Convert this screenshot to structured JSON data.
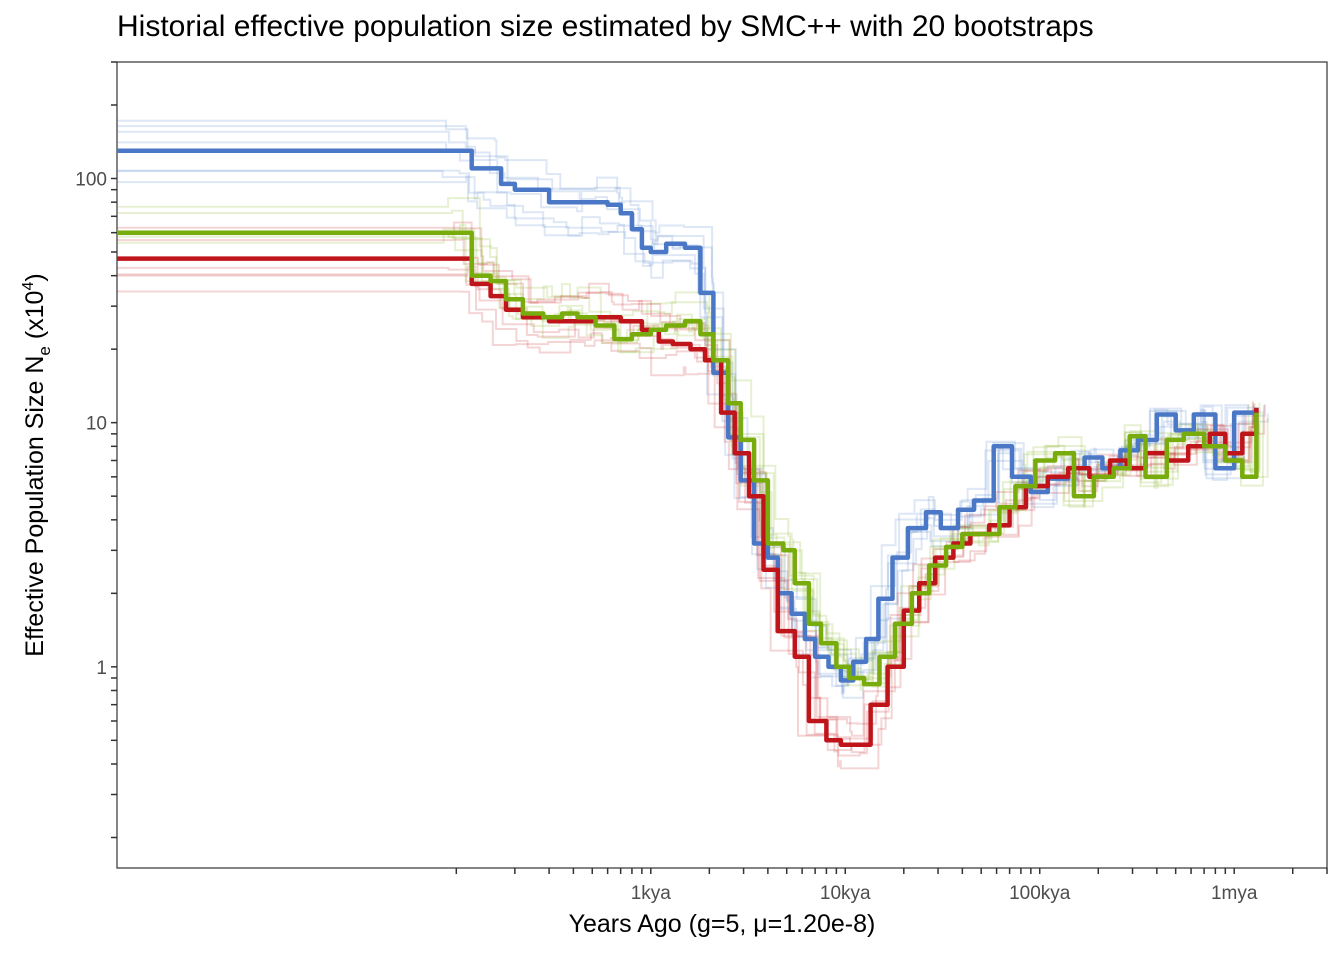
{
  "chart_data": {
    "type": "line",
    "title": "Historial effective population size estimated by SMC++ with 20 bootstraps",
    "xlabel": "Years Ago (g=5, μ=1.20e-8)",
    "ylabel_text": "Effective Population Size N",
    "ylabel_sub": "e",
    "ylabel_unit_prefix": " (x10",
    "ylabel_unit_exp": "4",
    "ylabel_unit_suffix": ")",
    "x_scale": "log10",
    "y_scale": "log10",
    "xlim": [
      1.8,
      3000000
    ],
    "ylim": [
      0.15,
      300
    ],
    "grid": false,
    "x_ticks": [
      {
        "value": 1000,
        "label": "1kya"
      },
      {
        "value": 10000,
        "label": "10kya"
      },
      {
        "value": 100000,
        "label": "100kya"
      },
      {
        "value": 1000000,
        "label": "1mya"
      }
    ],
    "y_ticks": [
      {
        "value": 1,
        "label": "1"
      },
      {
        "value": 10,
        "label": "10"
      },
      {
        "value": 100,
        "label": "100"
      }
    ],
    "series": [
      {
        "color": "#4a78c7",
        "x": [
          1.8,
          100,
          120,
          140,
          170,
          200,
          300,
          400,
          500,
          600,
          700,
          800,
          900,
          1000,
          1200,
          1500,
          1800,
          2100,
          2500,
          2900,
          3400,
          4000,
          4500,
          5300,
          6200,
          7000,
          8200,
          9500,
          11000,
          12800,
          14800,
          17500,
          21000,
          26000,
          31000,
          38000,
          46000,
          58000,
          72000,
          90000,
          110000,
          140000,
          170000,
          210000,
          260000,
          320000,
          400000,
          500000,
          620000,
          800000,
          1000000,
          1300000
        ],
        "y": [
          130,
          130,
          110,
          110,
          95,
          90,
          80,
          80,
          80,
          78,
          72,
          62,
          52,
          50,
          54,
          52,
          34,
          16,
          8.7,
          5.8,
          3.2,
          2.8,
          2.0,
          1.65,
          1.3,
          1.1,
          1.0,
          0.88,
          1.05,
          1.3,
          1.9,
          2.8,
          3.7,
          4.3,
          3.7,
          4.4,
          4.8,
          8.0,
          6.0,
          5.2,
          5.9,
          6.5,
          7.2,
          6.5,
          7.7,
          8.5,
          10.8,
          9.3,
          10.8,
          6.5,
          11.0,
          11.5
        ]
      },
      {
        "color": "#c0141b",
        "x": [
          1.8,
          100,
          120,
          150,
          180,
          220,
          300,
          400,
          500,
          600,
          700,
          900,
          1100,
          1300,
          1600,
          1900,
          2300,
          2700,
          3200,
          3800,
          4500,
          5500,
          6500,
          8000,
          9500,
          11000,
          13500,
          16500,
          20000,
          24000,
          29000,
          36000,
          44000,
          55000,
          70000,
          85000,
          110000,
          140000,
          180000,
          230000,
          280000,
          350000,
          450000,
          580000,
          750000,
          900000,
          1100000,
          1300000
        ],
        "y": [
          47,
          47,
          37,
          33,
          29,
          27,
          26,
          26,
          27,
          27,
          26,
          24,
          21.5,
          21,
          20,
          18,
          11,
          7.5,
          5.0,
          2.5,
          1.4,
          1.1,
          0.6,
          0.5,
          0.48,
          0.48,
          0.7,
          1.0,
          1.7,
          2.2,
          2.8,
          3.2,
          3.5,
          3.8,
          4.5,
          5.5,
          6.0,
          6.5,
          6.0,
          7.0,
          6.5,
          7.5,
          7.0,
          8.0,
          9.0,
          7.5,
          9.0,
          11.5
        ]
      },
      {
        "color": "#78ab0c",
        "x": [
          1.8,
          100,
          120,
          150,
          180,
          220,
          280,
          350,
          420,
          520,
          650,
          800,
          1000,
          1200,
          1500,
          1800,
          2100,
          2500,
          2900,
          3400,
          4000,
          4800,
          5500,
          6500,
          7500,
          9000,
          10500,
          12500,
          15000,
          18000,
          22000,
          27000,
          33000,
          40000,
          50000,
          62000,
          75000,
          95000,
          120000,
          150000,
          190000,
          240000,
          290000,
          350000,
          450000,
          550000,
          700000,
          900000,
          1100000,
          1300000
        ],
        "y": [
          60,
          60,
          40,
          38,
          32,
          28,
          27,
          28,
          27,
          25,
          22,
          23,
          24,
          25,
          26,
          23,
          18,
          12,
          8.5,
          5.8,
          3.2,
          3.0,
          2.2,
          1.5,
          1.25,
          1.0,
          0.9,
          0.85,
          1.1,
          1.5,
          2.0,
          2.6,
          3.1,
          3.5,
          3.5,
          4.5,
          5.5,
          7.0,
          7.5,
          5.0,
          6.0,
          6.5,
          8.8,
          6.0,
          8.5,
          9.0,
          8.0,
          7.0,
          6.0,
          11.0
        ]
      }
    ]
  }
}
